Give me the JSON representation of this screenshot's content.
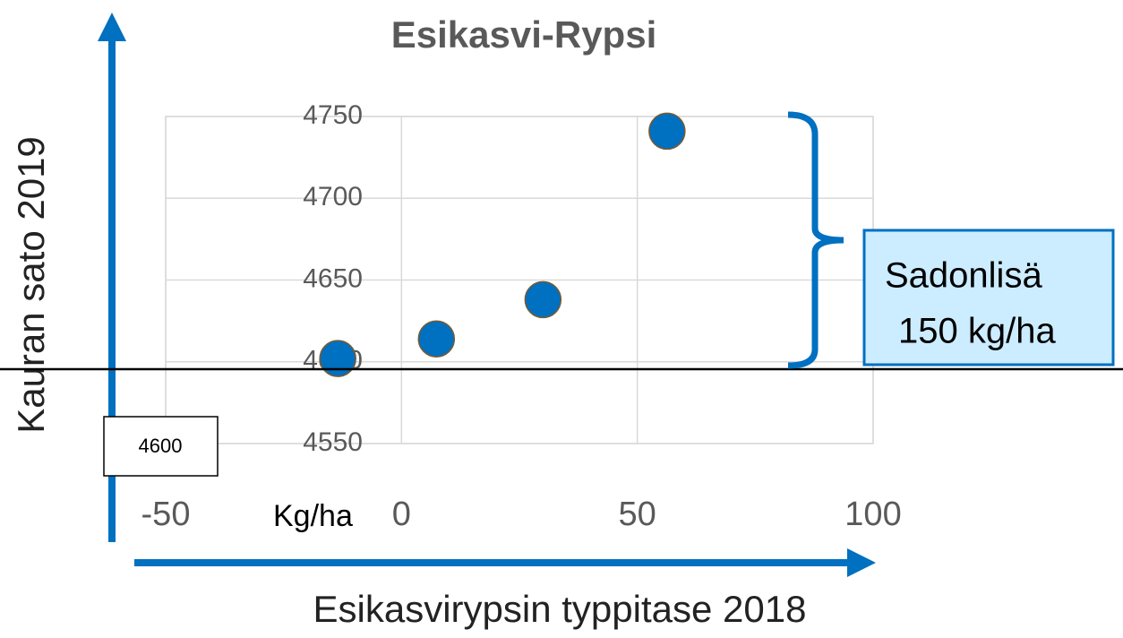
{
  "chart_data": {
    "type": "scatter",
    "title": "Esikasvi-Rypsi",
    "x_label": "Esikasvirypsin typpitase 2018",
    "y_label": "Kauran sato 2019",
    "x": [
      -13.5,
      7.4,
      30,
      56.3
    ],
    "series": [
      {
        "name": "Esikasvi-Rypsi",
        "color": "#0070c0",
        "values": [
          4602,
          4614,
          4638,
          4741
        ]
      }
    ],
    "xlim": [
      -50,
      100
    ],
    "xticks": [
      -50,
      0,
      50,
      100
    ],
    "ylim": [
      4550,
      4750
    ],
    "yticks": [
      4550,
      4600,
      4650,
      4700,
      4750
    ],
    "grid": true,
    "annotations": [
      "4600",
      "Kg/ha",
      "Sadonlisä",
      "150 kg/ha"
    ]
  }
}
